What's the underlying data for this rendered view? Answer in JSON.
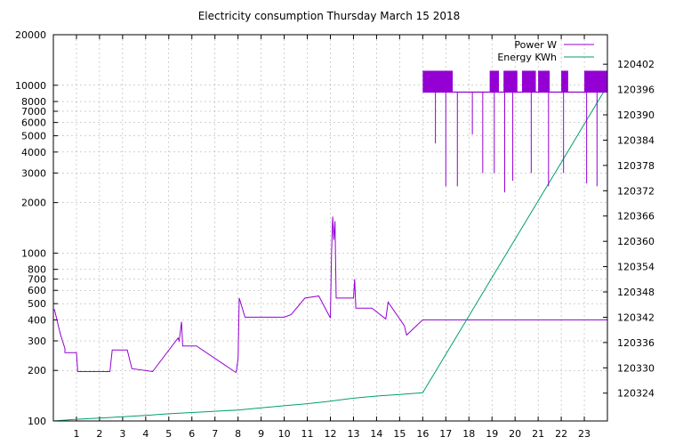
{
  "chart_data": {
    "type": "line",
    "title": "Electricity consumption Thursday March 15 2018",
    "x_ticks": [
      "1",
      "2",
      "3",
      "4",
      "5",
      "6",
      "7",
      "8",
      "9",
      "10",
      "11",
      "12",
      "13",
      "14",
      "15",
      "16",
      "17",
      "18",
      "19",
      "20",
      "21",
      "22",
      "23"
    ],
    "xlim": [
      0,
      24
    ],
    "y_left": {
      "scale": "log",
      "lim": [
        100,
        20000
      ],
      "ticks": [
        {
          "v": 100,
          "label": "100"
        },
        {
          "v": 200,
          "label": "200"
        },
        {
          "v": 300,
          "label": "300"
        },
        {
          "v": 400,
          "label": "400"
        },
        {
          "v": 500,
          "label": "500"
        },
        {
          "v": 600,
          "label": "600"
        },
        {
          "v": 700,
          "label": "700"
        },
        {
          "v": 800,
          "label": "800"
        },
        {
          "v": 1000,
          "label": "1000"
        },
        {
          "v": 2000,
          "label": "2000"
        },
        {
          "v": 3000,
          "label": "3000"
        },
        {
          "v": 4000,
          "label": "4000"
        },
        {
          "v": 5000,
          "label": "5000"
        },
        {
          "v": 6000,
          "label": "6000"
        },
        {
          "v": 7000,
          "label": "7000"
        },
        {
          "v": 8000,
          "label": "8000"
        },
        {
          "v": 10000,
          "label": "10000"
        },
        {
          "v": 20000,
          "label": "20000"
        }
      ]
    },
    "y_right": {
      "scale": "linear",
      "lim": [
        120317.4,
        120409
      ],
      "ticks": [
        "120324",
        "120330",
        "120336",
        "120342",
        "120348",
        "120354",
        "120360",
        "120366",
        "120372",
        "120378",
        "120384",
        "120390",
        "120396",
        "120402"
      ]
    },
    "grid": true,
    "legend_position": "top-right",
    "series": [
      {
        "name": "Power W",
        "axis": "left",
        "color": "#9400d3",
        "x": [
          0,
          0.05,
          0.05,
          0.3,
          0.3,
          0.5,
          0.5,
          1.0,
          1.0,
          1.05,
          1.05,
          1.7,
          1.7,
          2.45,
          2.45,
          2.55,
          2.55,
          3.2,
          3.2,
          3.4,
          3.4,
          4.3,
          4.3,
          5.4,
          5.4,
          5.45,
          5.45,
          5.55,
          5.55,
          5.6,
          5.6,
          6.2,
          6.2,
          7.85,
          7.85,
          7.9,
          7.9,
          7.92,
          7.92,
          8.0,
          8.0,
          8.05,
          8.05,
          8.3,
          8.3,
          10.0,
          10.0,
          10.3,
          10.3,
          10.9,
          10.9,
          11.5,
          11.5,
          12.0,
          12.0,
          12.05,
          12.05,
          12.1,
          12.1,
          12.15,
          12.15,
          12.2,
          12.2,
          12.25,
          12.25,
          13.0,
          13.0,
          13.05,
          13.05,
          13.1,
          13.1,
          13.8,
          13.8,
          14.4,
          14.4,
          14.5,
          14.5,
          15.2,
          15.2,
          15.3,
          15.3,
          16.0,
          16.0,
          24.0
        ],
        "y": [
          460,
          460,
          460,
          330,
          330,
          270,
          255,
          255,
          255,
          200,
          197,
          197,
          197,
          197,
          197,
          265,
          265,
          265,
          265,
          205,
          205,
          197,
          197,
          312,
          312,
          300,
          300,
          390,
          390,
          280,
          280,
          280,
          280,
          197,
          197,
          195,
          195,
          195,
          195,
          235,
          235,
          540,
          540,
          415,
          415,
          415,
          415,
          430,
          430,
          540,
          540,
          555,
          555,
          410,
          410,
          1000,
          1000,
          1650,
          1650,
          1200,
          1200,
          1550,
          1550,
          540,
          540,
          540,
          540,
          700,
          700,
          470,
          470,
          470,
          470,
          405,
          405,
          510,
          510,
          370,
          370,
          325,
          325,
          400,
          400,
          400
        ]
      },
      {
        "name": "Energy KWh",
        "axis": "right",
        "color": "#009e73",
        "x": [
          0,
          1,
          2,
          3,
          4,
          5,
          6,
          7,
          8,
          9,
          10,
          11,
          12,
          13,
          14,
          15,
          16,
          17,
          18,
          19,
          20,
          21,
          22,
          23,
          24
        ],
        "y": [
          120317.4,
          120317.8,
          120318.1,
          120318.4,
          120318.7,
          120319.1,
          120319.4,
          120319.7,
          120320.0,
          120320.5,
          120321.0,
          120321.5,
          120322.1,
          120322.8,
          120323.3,
          120323.7,
          120324.1,
          120333.2,
          120342.3,
          120351.4,
          120360.5,
          120369.6,
          120378.7,
          120387.8,
          120396.9
        ]
      }
    ]
  }
}
